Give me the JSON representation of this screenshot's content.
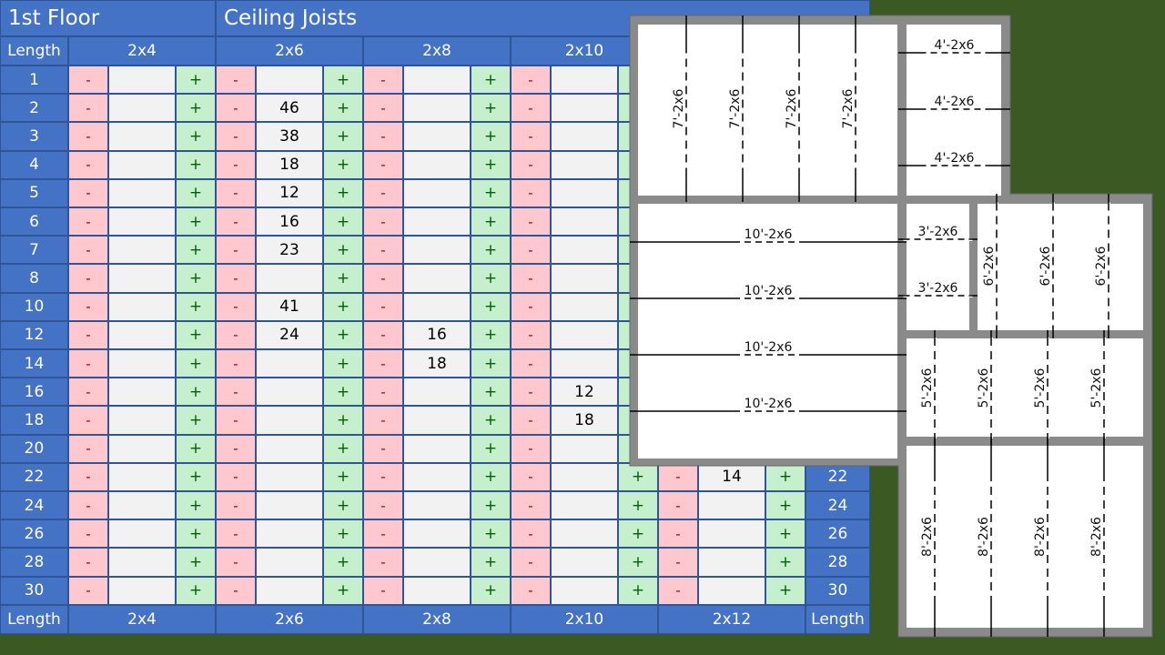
{
  "header": {
    "floor": "1st Floor",
    "section": "Ceiling Joists"
  },
  "length_label": "Length",
  "minus_label": "-",
  "plus_label": "+",
  "sizes": [
    "2x4",
    "2x6",
    "2x8",
    "2x10",
    "2x12"
  ],
  "lengths": [
    "1",
    "2",
    "3",
    "4",
    "5",
    "6",
    "7",
    "8",
    "10",
    "12",
    "14",
    "16",
    "18",
    "20",
    "22",
    "24",
    "26",
    "28",
    "30"
  ],
  "quantities": {
    "2x4": {},
    "2x6": {
      "2": "46",
      "3": "38",
      "4": "18",
      "5": "12",
      "6": "16",
      "7": "23",
      "10": "41",
      "12": "24"
    },
    "2x8": {
      "12": "16",
      "14": "18"
    },
    "2x10": {
      "16": "12",
      "18": "18"
    },
    "2x12": {
      "22": "14"
    }
  },
  "plan": {
    "rooms": [
      {
        "name": "room-a",
        "joist_label": "7'-2x6",
        "count": 4
      },
      {
        "name": "room-b",
        "joist_label": "4'-2x6",
        "count": 3
      },
      {
        "name": "room-c",
        "joist_label": "10'-2x6",
        "count": 4
      },
      {
        "name": "room-d",
        "joist_label": "3'-2x6",
        "count": 2
      },
      {
        "name": "room-e",
        "joist_label": "6'-2x6",
        "count": 3
      },
      {
        "name": "room-f",
        "joist_label": "5'-2x6",
        "count": 4
      },
      {
        "name": "room-g",
        "joist_label": "8'-2x6",
        "count": 4
      }
    ]
  }
}
